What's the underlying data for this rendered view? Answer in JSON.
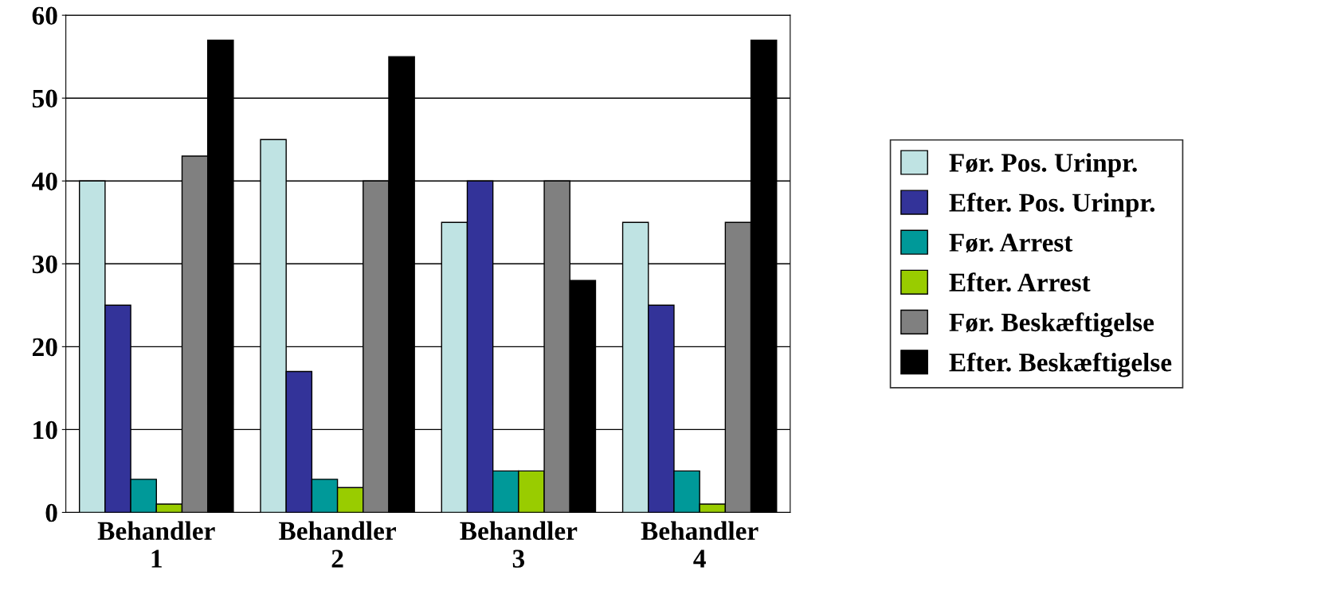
{
  "chart_data": {
    "type": "bar",
    "categories": [
      "Behandler\n1",
      "Behandler\n2",
      "Behandler\n3",
      "Behandler\n4"
    ],
    "series": [
      {
        "name": "Før. Pos. Urinpr.",
        "color": "#bfe3e3",
        "values": [
          40,
          45,
          35,
          35
        ]
      },
      {
        "name": "Efter. Pos. Urinpr.",
        "color": "#333399",
        "values": [
          25,
          17,
          40,
          25
        ]
      },
      {
        "name": "Før. Arrest",
        "color": "#009999",
        "values": [
          4,
          4,
          5,
          5
        ]
      },
      {
        "name": "Efter. Arrest",
        "color": "#99cc00",
        "values": [
          1,
          3,
          5,
          1
        ]
      },
      {
        "name": "Før. Beskæftigelse",
        "color": "#808080",
        "values": [
          43,
          40,
          40,
          35
        ]
      },
      {
        "name": "Efter. Beskæftigelse",
        "color": "#000000",
        "values": [
          57,
          55,
          28,
          57
        ]
      }
    ],
    "ylim": [
      0,
      60
    ],
    "yticks": [
      0,
      10,
      20,
      30,
      40,
      50,
      60
    ],
    "grid": "y",
    "legend": "right"
  }
}
